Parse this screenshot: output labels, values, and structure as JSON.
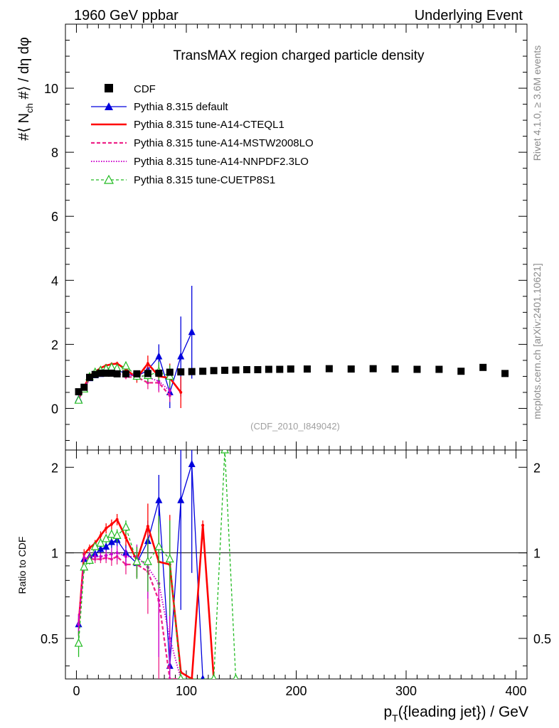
{
  "header": {
    "left": "1960 GeV ppbar",
    "right": "Underlying Event"
  },
  "side_labels": {
    "rivet": "Rivet 4.1.0, ≥ 3.6M events",
    "mcplots": "mcplots.cern.ch [arXiv:2401.10621]"
  },
  "colors": {
    "cdf": "#000000",
    "default": "#0000dd",
    "cteql1": "#ff0000",
    "mstw": "#ee2288",
    "nnpdf": "#cc00cc",
    "cuetp8s1": "#22bb22"
  },
  "chart_data": [
    {
      "type": "scatter",
      "panel": "main",
      "title": "TransMAX region charged particle density",
      "ylabel": "#⟨ N_ch #⟩ / dη dφ",
      "xlabel": "p_T({leading jet}) / GeV",
      "watermark": "(CDF_2010_I849042)",
      "xlim": [
        -10,
        410
      ],
      "ylim": [
        -1.3,
        12.0
      ],
      "xticks": [
        0,
        100,
        200,
        300,
        400
      ],
      "yticks": [
        0,
        2,
        4,
        6,
        8,
        10
      ],
      "legend": [
        "CDF",
        "Pythia 8.315 default",
        "Pythia 8.315 tune-A14-CTEQL1",
        "Pythia 8.315 tune-A14-MSTW2008LO",
        "Pythia 8.315 tune-A14-NNPDF2.3LO",
        "Pythia 8.315 tune-CUETP8S1"
      ],
      "series": [
        {
          "name": "CDF",
          "style": "data",
          "x": [
            2,
            7,
            12,
            17,
            22,
            27,
            32,
            37,
            45,
            55,
            65,
            75,
            85,
            95,
            105,
            115,
            125,
            135,
            145,
            155,
            165,
            175,
            185,
            195,
            210,
            230,
            250,
            270,
            290,
            310,
            330,
            350,
            370,
            390
          ],
          "y": [
            0.52,
            0.66,
            0.97,
            1.06,
            1.1,
            1.1,
            1.1,
            1.08,
            1.08,
            1.08,
            1.09,
            1.1,
            1.13,
            1.14,
            1.15,
            1.16,
            1.18,
            1.19,
            1.2,
            1.21,
            1.21,
            1.22,
            1.22,
            1.23,
            1.23,
            1.24,
            1.23,
            1.24,
            1.23,
            1.22,
            1.22,
            1.16,
            1.28,
            1.09
          ]
        },
        {
          "name": "Pythia 8.315 default",
          "style": "default",
          "x": [
            2,
            7,
            12,
            17,
            22,
            27,
            32,
            37,
            45,
            55,
            65,
            75,
            85,
            95,
            105
          ],
          "y": [
            0.29,
            0.63,
            0.94,
            1.03,
            1.07,
            1.13,
            1.2,
            1.22,
            1.07,
            1.0,
            1.2,
            1.62,
            0.5,
            1.62,
            2.38
          ],
          "err": [
            0.03,
            0.03,
            0.03,
            0.03,
            0.04,
            0.05,
            0.06,
            0.07,
            0.08,
            0.12,
            0.25,
            0.38,
            0.6,
            1.25,
            1.45
          ]
        },
        {
          "name": "Pythia 8.315 tune-A14-CTEQL1",
          "style": "cteql1",
          "x": [
            2,
            7,
            12,
            17,
            22,
            27,
            32,
            37,
            45,
            55,
            65,
            75,
            85,
            95
          ],
          "y": [
            0.29,
            0.66,
            1.02,
            1.14,
            1.26,
            1.34,
            1.38,
            1.4,
            1.22,
            0.95,
            1.4,
            1.0,
            0.95,
            0.5
          ],
          "err": [
            0.03,
            0.03,
            0.03,
            0.04,
            0.05,
            0.05,
            0.06,
            0.06,
            0.08,
            0.15,
            0.25,
            0.35,
            0.45,
            0.5
          ]
        },
        {
          "name": "Pythia 8.315 tune-A14-MSTW2008LO",
          "style": "mstw",
          "x": [
            2,
            7,
            12,
            17,
            22,
            27,
            32,
            37,
            45,
            55,
            65,
            75,
            85
          ],
          "y": [
            0.29,
            0.64,
            0.92,
            1.0,
            1.03,
            1.06,
            1.05,
            1.05,
            0.98,
            0.98,
            0.8,
            0.8,
            0.4
          ],
          "err": [
            0.03,
            0.03,
            0.03,
            0.03,
            0.04,
            0.05,
            0.05,
            0.06,
            0.07,
            0.1,
            0.2,
            0.3,
            0.2
          ]
        },
        {
          "name": "Pythia 8.315 tune-A14-NNPDF2.3LO",
          "style": "nnpdf",
          "x": [
            2,
            7,
            12,
            17,
            22,
            27,
            32,
            37,
            45,
            55,
            65,
            75,
            85
          ],
          "y": [
            0.29,
            0.64,
            0.94,
            1.02,
            1.06,
            1.08,
            1.09,
            1.08,
            1.05,
            1.05,
            0.97,
            0.85,
            0.55
          ],
          "err": [
            0.03,
            0.03,
            0.03,
            0.03,
            0.04,
            0.05,
            0.05,
            0.06,
            0.07,
            0.1,
            0.2,
            0.3,
            0.25
          ]
        },
        {
          "name": "Pythia 8.315 tune-CUETP8S1",
          "style": "cuetp8s1",
          "x": [
            2,
            7,
            12,
            17,
            22,
            27,
            32,
            37,
            45,
            55,
            65,
            75,
            85
          ],
          "y": [
            0.25,
            0.6,
            0.98,
            1.12,
            1.18,
            1.23,
            1.28,
            1.25,
            1.32,
            1.0,
            1.02,
            1.15,
            1.0
          ],
          "err": [
            0.03,
            0.03,
            0.03,
            0.04,
            0.04,
            0.05,
            0.05,
            0.06,
            0.08,
            0.12,
            0.2,
            0.3,
            0.35
          ]
        }
      ]
    },
    {
      "type": "line",
      "panel": "ratio",
      "ylabel": "Ratio to CDF",
      "ylim": [
        0.36,
        2.3
      ],
      "yticks": [
        0.5,
        1,
        2
      ],
      "ytick_labels": [
        "0.5",
        "1",
        "2"
      ],
      "reference": 1,
      "series": [
        {
          "name": "Pythia 8.315 default",
          "style": "default",
          "x": [
            2,
            7,
            12,
            17,
            22,
            27,
            32,
            37,
            45,
            55,
            65,
            75,
            85,
            95,
            105,
            115
          ],
          "y": [
            0.56,
            0.95,
            0.97,
            0.99,
            1.03,
            1.05,
            1.09,
            1.11,
            1.0,
            0.92,
            1.1,
            1.53,
            0.4,
            1.53,
            2.05,
            0.3
          ],
          "err": [
            0.05,
            0.04,
            0.03,
            0.03,
            0.03,
            0.04,
            0.05,
            0.06,
            0.07,
            0.1,
            0.2,
            0.35,
            0.4,
            0.9,
            1.2,
            0.0
          ]
        },
        {
          "name": "Pythia 8.315 tune-A14-CTEQL1",
          "style": "cteql1",
          "x": [
            2,
            7,
            12,
            17,
            22,
            27,
            32,
            37,
            45,
            55,
            65,
            75,
            85,
            95,
            105,
            115,
            125
          ],
          "y": [
            0.56,
            0.99,
            1.04,
            1.08,
            1.15,
            1.22,
            1.26,
            1.31,
            1.13,
            0.94,
            1.24,
            0.93,
            0.91,
            0.38,
            0.3,
            1.25,
            0.3
          ],
          "err": [
            0.05,
            0.04,
            0.03,
            0.03,
            0.04,
            0.05,
            0.05,
            0.06,
            0.07,
            0.12,
            0.25,
            0.4,
            0.45,
            0.0,
            0.0,
            0.05,
            0.0
          ]
        },
        {
          "name": "Pythia 8.315 tune-A14-MSTW2008LO",
          "style": "mstw",
          "x": [
            2,
            7,
            12,
            17,
            22,
            27,
            32,
            37,
            45,
            55,
            65,
            75,
            85,
            95
          ],
          "y": [
            0.56,
            0.96,
            0.95,
            0.95,
            0.95,
            0.96,
            0.95,
            0.97,
            0.91,
            0.91,
            0.86,
            0.68,
            0.36,
            0.3
          ],
          "err": [
            0.05,
            0.04,
            0.03,
            0.03,
            0.03,
            0.04,
            0.05,
            0.06,
            0.07,
            0.1,
            0.25,
            0.35,
            0.25,
            0.0
          ]
        },
        {
          "name": "Pythia 8.315 tune-A14-NNPDF2.3LO",
          "style": "nnpdf",
          "x": [
            2,
            7,
            12,
            17,
            22,
            27,
            32,
            37,
            45,
            55,
            65,
            75,
            85,
            95
          ],
          "y": [
            0.56,
            0.96,
            0.97,
            0.97,
            0.97,
            0.98,
            0.99,
            1.0,
            0.97,
            0.97,
            0.89,
            0.78,
            0.5,
            0.3
          ],
          "err": [
            0.05,
            0.04,
            0.03,
            0.03,
            0.03,
            0.04,
            0.05,
            0.06,
            0.07,
            0.1,
            0.2,
            0.35,
            0.25,
            0.0
          ]
        },
        {
          "name": "Pythia 8.315 tune-CUETP8S1",
          "style": "cuetp8s1",
          "x": [
            2,
            7,
            12,
            17,
            22,
            27,
            32,
            37,
            45,
            55,
            65,
            75,
            85,
            95,
            125,
            135,
            145
          ],
          "y": [
            0.48,
            0.89,
            0.94,
            1.05,
            1.08,
            1.12,
            1.16,
            1.15,
            1.23,
            0.93,
            0.93,
            1.05,
            0.95,
            0.3,
            0.3,
            2.3,
            0.3
          ],
          "err": [
            0.05,
            0.04,
            0.03,
            0.03,
            0.03,
            0.04,
            0.05,
            0.06,
            0.07,
            0.12,
            0.2,
            0.3,
            0.35,
            0.0,
            0.0,
            0.0,
            0.0
          ]
        }
      ]
    }
  ]
}
